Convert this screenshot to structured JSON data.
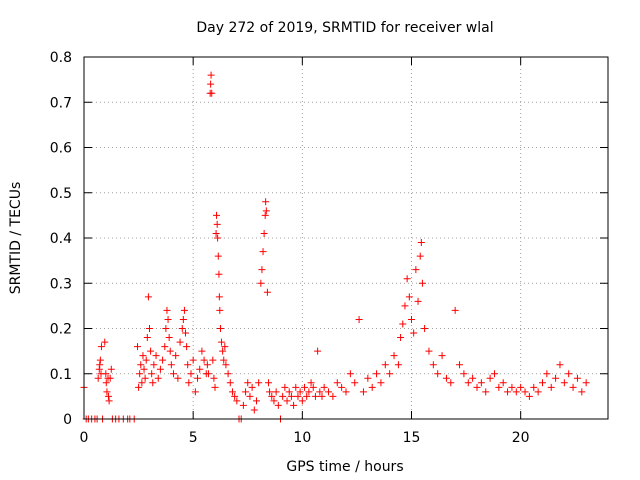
{
  "chart_data": {
    "type": "scatter",
    "title": "Day 272 of 2019, SRMTID for receiver wlal",
    "xlabel": "GPS time / hours",
    "ylabel": "SRMTID / TECUs",
    "xlim": [
      0,
      24
    ],
    "ylim": [
      0,
      0.8
    ],
    "x_ticks": [
      0,
      5,
      10,
      15,
      20
    ],
    "y_ticks": [
      0,
      0.1,
      0.2,
      0.3,
      0.4,
      0.5,
      0.6,
      0.7,
      0.8
    ],
    "x_tick_labels": [
      "0",
      "5",
      "10",
      "15",
      "20"
    ],
    "y_tick_labels": [
      "0",
      "0.1",
      "0.2",
      "0.3",
      "0.4",
      "0.5",
      "0.6",
      "0.7",
      "0.8"
    ],
    "grid": true,
    "marker": "+",
    "series": [
      {
        "name": "SRMTID",
        "color": "#ff0000",
        "points": [
          [
            0.0,
            0.07
          ],
          [
            0.1,
            0.0
          ],
          [
            0.2,
            0.0
          ],
          [
            0.35,
            0.0
          ],
          [
            0.5,
            0.0
          ],
          [
            0.6,
            0.0
          ],
          [
            0.65,
            0.09
          ],
          [
            0.7,
            0.11
          ],
          [
            0.72,
            0.12
          ],
          [
            0.75,
            0.13
          ],
          [
            0.78,
            0.1
          ],
          [
            0.8,
            0.16
          ],
          [
            0.85,
            0.0
          ],
          [
            0.95,
            0.17
          ],
          [
            1.0,
            0.1
          ],
          [
            1.02,
            0.08
          ],
          [
            1.05,
            0.06
          ],
          [
            1.1,
            0.09
          ],
          [
            1.12,
            0.05
          ],
          [
            1.15,
            0.04
          ],
          [
            1.2,
            0.09
          ],
          [
            1.25,
            0.11
          ],
          [
            1.3,
            0.0
          ],
          [
            1.45,
            0.0
          ],
          [
            1.6,
            0.0
          ],
          [
            1.8,
            0.0
          ],
          [
            2.0,
            0.0
          ],
          [
            2.1,
            0.0
          ],
          [
            2.3,
            0.0
          ],
          [
            2.45,
            0.16
          ],
          [
            2.5,
            0.07
          ],
          [
            2.55,
            0.1
          ],
          [
            2.6,
            0.12
          ],
          [
            2.65,
            0.08
          ],
          [
            2.7,
            0.14
          ],
          [
            2.75,
            0.11
          ],
          [
            2.8,
            0.09
          ],
          [
            2.85,
            0.13
          ],
          [
            2.9,
            0.18
          ],
          [
            2.95,
            0.27
          ],
          [
            3.0,
            0.2
          ],
          [
            3.05,
            0.15
          ],
          [
            3.1,
            0.1
          ],
          [
            3.15,
            0.08
          ],
          [
            3.2,
            0.12
          ],
          [
            3.3,
            0.14
          ],
          [
            3.4,
            0.09
          ],
          [
            3.5,
            0.11
          ],
          [
            3.6,
            0.13
          ],
          [
            3.7,
            0.16
          ],
          [
            3.75,
            0.2
          ],
          [
            3.8,
            0.24
          ],
          [
            3.85,
            0.22
          ],
          [
            3.9,
            0.18
          ],
          [
            3.95,
            0.15
          ],
          [
            4.0,
            0.12
          ],
          [
            4.1,
            0.1
          ],
          [
            4.2,
            0.14
          ],
          [
            4.3,
            0.09
          ],
          [
            4.4,
            0.17
          ],
          [
            4.5,
            0.2
          ],
          [
            4.55,
            0.22
          ],
          [
            4.6,
            0.24
          ],
          [
            4.65,
            0.19
          ],
          [
            4.7,
            0.16
          ],
          [
            4.75,
            0.12
          ],
          [
            4.8,
            0.08
          ],
          [
            4.9,
            0.1
          ],
          [
            5.0,
            0.13
          ],
          [
            5.1,
            0.06
          ],
          [
            5.2,
            0.09
          ],
          [
            5.3,
            0.11
          ],
          [
            5.4,
            0.15
          ],
          [
            5.5,
            0.13
          ],
          [
            5.6,
            0.1
          ],
          [
            5.65,
            0.12
          ],
          [
            5.7,
            0.1
          ],
          [
            5.78,
            0.72
          ],
          [
            5.8,
            0.74
          ],
          [
            5.82,
            0.76
          ],
          [
            5.85,
            0.72
          ],
          [
            5.9,
            0.13
          ],
          [
            5.95,
            0.09
          ],
          [
            6.0,
            0.07
          ],
          [
            6.05,
            0.41
          ],
          [
            6.07,
            0.45
          ],
          [
            6.1,
            0.43
          ],
          [
            6.12,
            0.4
          ],
          [
            6.15,
            0.36
          ],
          [
            6.18,
            0.32
          ],
          [
            6.2,
            0.27
          ],
          [
            6.22,
            0.24
          ],
          [
            6.25,
            0.2
          ],
          [
            6.3,
            0.17
          ],
          [
            6.35,
            0.15
          ],
          [
            6.4,
            0.13
          ],
          [
            6.45,
            0.16
          ],
          [
            6.5,
            0.12
          ],
          [
            6.6,
            0.1
          ],
          [
            6.7,
            0.08
          ],
          [
            6.8,
            0.06
          ],
          [
            6.9,
            0.05
          ],
          [
            7.0,
            0.04
          ],
          [
            7.1,
            0.0
          ],
          [
            7.2,
            0.0
          ],
          [
            7.3,
            0.03
          ],
          [
            7.4,
            0.06
          ],
          [
            7.5,
            0.08
          ],
          [
            7.6,
            0.05
          ],
          [
            7.7,
            0.07
          ],
          [
            7.8,
            0.02
          ],
          [
            7.9,
            0.04
          ],
          [
            8.0,
            0.08
          ],
          [
            8.1,
            0.3
          ],
          [
            8.15,
            0.33
          ],
          [
            8.2,
            0.37
          ],
          [
            8.25,
            0.41
          ],
          [
            8.3,
            0.45
          ],
          [
            8.32,
            0.48
          ],
          [
            8.35,
            0.46
          ],
          [
            8.4,
            0.28
          ],
          [
            8.45,
            0.08
          ],
          [
            8.5,
            0.06
          ],
          [
            8.6,
            0.05
          ],
          [
            8.7,
            0.04
          ],
          [
            8.8,
            0.06
          ],
          [
            8.9,
            0.03
          ],
          [
            9.0,
            0.0
          ],
          [
            9.1,
            0.05
          ],
          [
            9.2,
            0.07
          ],
          [
            9.3,
            0.04
          ],
          [
            9.4,
            0.06
          ],
          [
            9.5,
            0.05
          ],
          [
            9.6,
            0.03
          ],
          [
            9.7,
            0.07
          ],
          [
            9.8,
            0.05
          ],
          [
            9.9,
            0.06
          ],
          [
            10.0,
            0.04
          ],
          [
            10.1,
            0.07
          ],
          [
            10.2,
            0.05
          ],
          [
            10.3,
            0.06
          ],
          [
            10.4,
            0.08
          ],
          [
            10.5,
            0.07
          ],
          [
            10.6,
            0.05
          ],
          [
            10.7,
            0.15
          ],
          [
            10.8,
            0.06
          ],
          [
            10.9,
            0.05
          ],
          [
            11.0,
            0.07
          ],
          [
            11.2,
            0.06
          ],
          [
            11.4,
            0.05
          ],
          [
            11.6,
            0.08
          ],
          [
            11.8,
            0.07
          ],
          [
            12.0,
            0.06
          ],
          [
            12.2,
            0.1
          ],
          [
            12.4,
            0.08
          ],
          [
            12.6,
            0.22
          ],
          [
            12.8,
            0.06
          ],
          [
            13.0,
            0.09
          ],
          [
            13.2,
            0.07
          ],
          [
            13.4,
            0.1
          ],
          [
            13.6,
            0.08
          ],
          [
            13.8,
            0.12
          ],
          [
            14.0,
            0.1
          ],
          [
            14.2,
            0.14
          ],
          [
            14.4,
            0.12
          ],
          [
            14.5,
            0.18
          ],
          [
            14.6,
            0.21
          ],
          [
            14.7,
            0.25
          ],
          [
            14.8,
            0.31
          ],
          [
            14.9,
            0.27
          ],
          [
            15.0,
            0.22
          ],
          [
            15.1,
            0.19
          ],
          [
            15.2,
            0.33
          ],
          [
            15.3,
            0.26
          ],
          [
            15.4,
            0.36
          ],
          [
            15.45,
            0.39
          ],
          [
            15.5,
            0.3
          ],
          [
            15.6,
            0.2
          ],
          [
            15.8,
            0.15
          ],
          [
            16.0,
            0.12
          ],
          [
            16.2,
            0.1
          ],
          [
            16.4,
            0.14
          ],
          [
            16.6,
            0.09
          ],
          [
            16.8,
            0.08
          ],
          [
            17.0,
            0.24
          ],
          [
            17.2,
            0.12
          ],
          [
            17.4,
            0.1
          ],
          [
            17.6,
            0.08
          ],
          [
            17.8,
            0.09
          ],
          [
            18.0,
            0.07
          ],
          [
            18.2,
            0.08
          ],
          [
            18.4,
            0.06
          ],
          [
            18.6,
            0.09
          ],
          [
            18.8,
            0.1
          ],
          [
            19.0,
            0.07
          ],
          [
            19.2,
            0.08
          ],
          [
            19.4,
            0.06
          ],
          [
            19.6,
            0.07
          ],
          [
            19.8,
            0.06
          ],
          [
            20.0,
            0.07
          ],
          [
            20.2,
            0.06
          ],
          [
            20.4,
            0.05
          ],
          [
            20.6,
            0.07
          ],
          [
            20.8,
            0.06
          ],
          [
            21.0,
            0.08
          ],
          [
            21.2,
            0.1
          ],
          [
            21.4,
            0.07
          ],
          [
            21.6,
            0.09
          ],
          [
            21.8,
            0.12
          ],
          [
            22.0,
            0.08
          ],
          [
            22.2,
            0.1
          ],
          [
            22.4,
            0.07
          ],
          [
            22.6,
            0.09
          ],
          [
            22.8,
            0.06
          ],
          [
            23.0,
            0.08
          ]
        ]
      }
    ]
  }
}
